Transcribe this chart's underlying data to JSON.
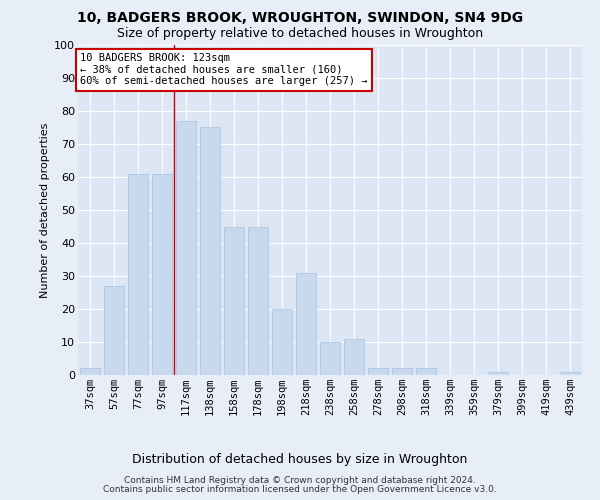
{
  "title": "10, BADGERS BROOK, WROUGHTON, SWINDON, SN4 9DG",
  "subtitle": "Size of property relative to detached houses in Wroughton",
  "xlabel": "Distribution of detached houses by size in Wroughton",
  "ylabel": "Number of detached properties",
  "bar_color": "#c8d9ee",
  "bar_edgecolor": "#a8c0de",
  "plot_bg": "#dce6f5",
  "fig_bg": "#e8eef8",
  "grid_color": "#ffffff",
  "categories": [
    "37sqm",
    "57sqm",
    "77sqm",
    "97sqm",
    "117sqm",
    "138sqm",
    "158sqm",
    "178sqm",
    "198sqm",
    "218sqm",
    "238sqm",
    "258sqm",
    "278sqm",
    "298sqm",
    "318sqm",
    "339sqm",
    "359sqm",
    "379sqm",
    "399sqm",
    "419sqm",
    "439sqm"
  ],
  "values": [
    2,
    27,
    61,
    61,
    77,
    75,
    45,
    45,
    20,
    31,
    10,
    11,
    2,
    2,
    2,
    0,
    0,
    1,
    0,
    0,
    1
  ],
  "ylim": [
    0,
    100
  ],
  "yticks": [
    0,
    10,
    20,
    30,
    40,
    50,
    60,
    70,
    80,
    90,
    100
  ],
  "property_line_x": 3.5,
  "annotation_text": "10 BADGERS BROOK: 123sqm\n← 38% of detached houses are smaller (160)\n60% of semi-detached houses are larger (257) →",
  "footer_line1": "Contains HM Land Registry data © Crown copyright and database right 2024.",
  "footer_line2": "Contains public sector information licensed under the Open Government Licence v3.0.",
  "figsize": [
    6.0,
    5.0
  ],
  "dpi": 100
}
